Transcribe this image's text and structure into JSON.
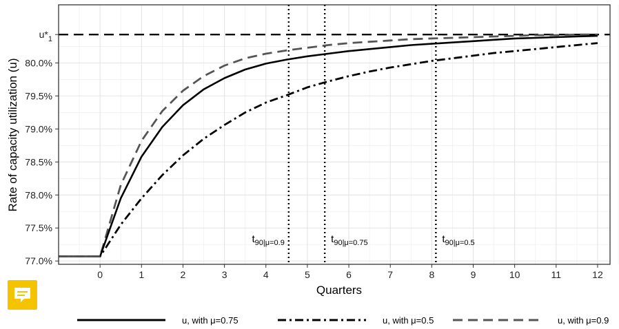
{
  "chart_data": {
    "type": "line",
    "xlabel": "Quarters",
    "ylabel": "Rate of capacity utilization (u)",
    "xlim": [
      -1.0,
      12.3
    ],
    "ylim": [
      76.95,
      80.88
    ],
    "x_ticks": [
      0,
      1,
      2,
      3,
      4,
      5,
      6,
      7,
      8,
      9,
      10,
      11,
      12
    ],
    "y_ticks": [
      77.0,
      77.5,
      78.0,
      78.5,
      79.0,
      79.5,
      80.0
    ],
    "y_tick_labels": [
      "77.0%",
      "77.5%",
      "78.0%",
      "78.5%",
      "79.0%",
      "79.5%",
      "80.0%"
    ],
    "grid": true,
    "steady_state": {
      "label": "u*",
      "sub": "1",
      "value": 80.43,
      "style": "dashed"
    },
    "start_value": 77.07,
    "series": [
      {
        "name": "u, with μ=0.75",
        "style": "solid",
        "color": "#000000",
        "x": [
          -1,
          0,
          0.5,
          1,
          1.5,
          2,
          2.5,
          3,
          3.5,
          4,
          4.5,
          5,
          5.5,
          6,
          6.5,
          7,
          7.5,
          8,
          8.5,
          9,
          9.5,
          10,
          10.5,
          11,
          11.5,
          12
        ],
        "y": [
          77.07,
          77.07,
          77.95,
          78.58,
          79.03,
          79.36,
          79.6,
          79.77,
          79.9,
          79.99,
          80.05,
          80.1,
          80.14,
          80.18,
          80.21,
          80.24,
          80.27,
          80.29,
          80.31,
          80.33,
          80.35,
          80.37,
          80.38,
          80.39,
          80.4,
          80.41
        ]
      },
      {
        "name": "u, with μ=0.5",
        "style": "dashdot",
        "color": "#000000",
        "x": [
          -1,
          0,
          0.5,
          1,
          1.5,
          2,
          2.5,
          3,
          3.5,
          4,
          4.5,
          5,
          5.5,
          6,
          6.5,
          7,
          7.5,
          8,
          8.5,
          9,
          9.5,
          10,
          10.5,
          11,
          11.5,
          12
        ],
        "y": [
          77.07,
          77.07,
          77.55,
          77.95,
          78.3,
          78.6,
          78.85,
          79.06,
          79.25,
          79.4,
          79.51,
          79.63,
          79.72,
          79.8,
          79.87,
          79.93,
          79.98,
          80.03,
          80.07,
          80.11,
          80.15,
          80.18,
          80.21,
          80.24,
          80.27,
          80.3
        ]
      },
      {
        "name": "u, with μ=0.9",
        "style": "dashed",
        "color": "#555555",
        "x": [
          -1,
          0,
          0.5,
          1,
          1.5,
          2,
          2.5,
          3,
          3.5,
          4,
          4.5,
          5,
          5.5,
          6,
          6.5,
          7,
          7.5,
          8,
          8.5,
          9,
          9.5,
          10,
          10.5,
          11,
          11.5,
          12
        ],
        "y": [
          77.07,
          77.07,
          78.15,
          78.82,
          79.27,
          79.58,
          79.8,
          79.96,
          80.07,
          80.14,
          80.19,
          80.23,
          80.27,
          80.3,
          80.32,
          80.34,
          80.36,
          80.37,
          80.38,
          80.39,
          80.4,
          80.41,
          80.42,
          80.42,
          80.43,
          80.43
        ]
      }
    ],
    "vlines": [
      {
        "x": 4.55,
        "label_main": "t",
        "label_sub": "90|μ=0.9",
        "label_side": "left"
      },
      {
        "x": 5.42,
        "label_main": "t",
        "label_sub": "90|μ=0.75",
        "label_side": "right"
      },
      {
        "x": 8.1,
        "label_main": "t",
        "label_sub": "90|μ=0.5",
        "label_side": "right"
      }
    ]
  },
  "icons": {
    "note": "note-icon"
  }
}
